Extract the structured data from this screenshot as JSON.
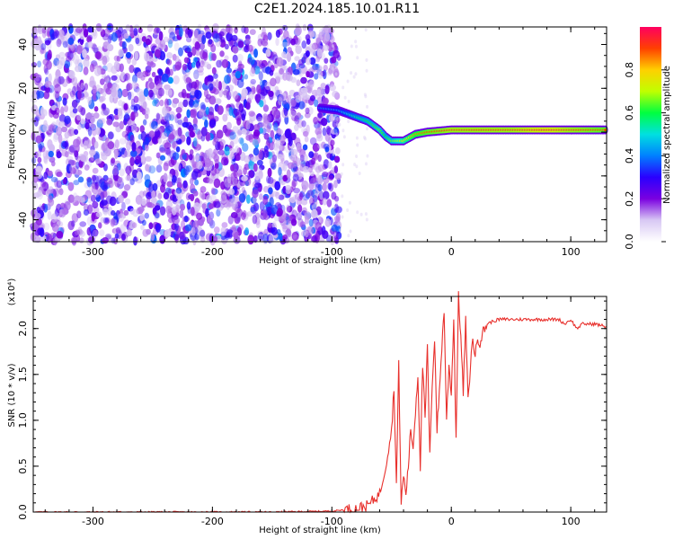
{
  "title": "C2E1.2024.185.10.01.R11",
  "chart_data": [
    {
      "type": "heatmap",
      "xlabel": "Height of straight line (km)",
      "ylabel": "Frequency (Hz)",
      "xlim": [
        -350,
        130
      ],
      "ylim": [
        -50,
        48
      ],
      "x_ticks": [
        -300,
        -200,
        -100,
        0,
        100
      ],
      "y_ticks": [
        -40,
        -20,
        0,
        20,
        40
      ],
      "colorbar": {
        "label": "Normalized spectral amplitude",
        "range": [
          0,
          1
        ],
        "ticks": [
          "0.0",
          "0.2",
          "0.4",
          "0.6",
          "0.8"
        ],
        "colors": [
          "#ffffff",
          "#d8c8f4",
          "#7a00e0",
          "#2a00ff",
          "#0080ff",
          "#00e0e0",
          "#00ff40",
          "#c0ff00",
          "#ffd000",
          "#ff4000",
          "#ff0060"
        ]
      },
      "noise_region_x": [
        -350,
        -100
      ],
      "ridge": [
        {
          "x": -110,
          "y": 11,
          "amp": 0.35
        },
        {
          "x": -95,
          "y": 10,
          "amp": 0.4
        },
        {
          "x": -80,
          "y": 7,
          "amp": 0.5
        },
        {
          "x": -70,
          "y": 5,
          "amp": 0.55
        },
        {
          "x": -60,
          "y": 1,
          "amp": 0.6
        },
        {
          "x": -55,
          "y": -2,
          "amp": 0.55
        },
        {
          "x": -50,
          "y": -4,
          "amp": 0.6
        },
        {
          "x": -40,
          "y": -4,
          "amp": 0.7
        },
        {
          "x": -30,
          "y": -1,
          "amp": 0.8
        },
        {
          "x": -20,
          "y": 0,
          "amp": 0.85
        },
        {
          "x": 0,
          "y": 1,
          "amp": 0.9
        },
        {
          "x": 20,
          "y": 1,
          "amp": 0.9
        },
        {
          "x": 50,
          "y": 1,
          "amp": 0.9
        },
        {
          "x": 80,
          "y": 1,
          "amp": 0.95
        },
        {
          "x": 100,
          "y": 1,
          "amp": 0.9
        },
        {
          "x": 130,
          "y": 1,
          "amp": 0.85
        }
      ]
    },
    {
      "type": "line",
      "xlabel": "Height of straight line (km)",
      "ylabel": "SNR (10 * v/v)",
      "multiplier": "(x10⁴)",
      "xlim": [
        -350,
        130
      ],
      "ylim": [
        0,
        2.35
      ],
      "x_ticks": [
        -300,
        -200,
        -100,
        0,
        100
      ],
      "y_ticks": [
        "0.0",
        "0.5",
        "1.0",
        "1.5",
        "2.0"
      ],
      "series": [
        {
          "color": "#e8302c",
          "x": [
            -350,
            -300,
            -250,
            -200,
            -150,
            -100,
            -80,
            -70,
            -60,
            -55,
            -50,
            -48,
            -46,
            -44,
            -42,
            -40,
            -38,
            -36,
            -34,
            -32,
            -30,
            -28,
            -26,
            -24,
            -22,
            -20,
            -18,
            -16,
            -14,
            -12,
            -10,
            -8,
            -6,
            -4,
            -2,
            0,
            2,
            4,
            6,
            8,
            10,
            12,
            14,
            16,
            18,
            20,
            22,
            24,
            26,
            28,
            30,
            35,
            40,
            50,
            60,
            70,
            80,
            90,
            95,
            100,
            105,
            110,
            120,
            130
          ],
          "values": [
            0.0,
            0.0,
            0.0,
            0.0,
            0.0,
            0.01,
            0.04,
            0.07,
            0.2,
            0.5,
            0.9,
            1.35,
            0.3,
            1.6,
            0.1,
            0.4,
            0.2,
            0.5,
            0.9,
            0.7,
            1.1,
            1.5,
            0.5,
            1.6,
            1.0,
            1.8,
            0.6,
            1.4,
            1.9,
            0.9,
            1.3,
            1.8,
            2.2,
            1.0,
            1.6,
            1.3,
            2.1,
            0.8,
            2.35,
            1.9,
            1.3,
            2.1,
            1.2,
            1.6,
            1.9,
            1.7,
            1.9,
            1.85,
            1.95,
            2.0,
            2.05,
            2.08,
            2.1,
            2.1,
            2.1,
            2.1,
            2.1,
            2.1,
            2.05,
            2.1,
            2.0,
            2.05,
            2.05,
            2.02
          ]
        }
      ]
    }
  ]
}
